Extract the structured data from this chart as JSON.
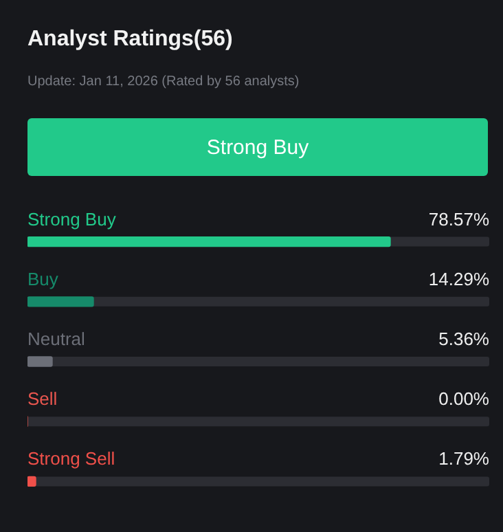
{
  "chart_data": {
    "type": "bar",
    "orientation": "horizontal",
    "title": "Analyst Ratings(56)",
    "subtitle": "Update: Jan 11, 2026 (Rated by 56 analysts)",
    "annotations": [
      "Strong Buy"
    ],
    "categories": [
      "Strong Buy",
      "Buy",
      "Neutral",
      "Sell",
      "Strong Sell"
    ],
    "values": [
      78.57,
      14.29,
      5.36,
      0,
      1.79
    ],
    "value_labels": [
      "78.57%",
      "14.29%",
      "5.36%",
      "0.00%",
      "1.79%"
    ],
    "colors": [
      "#22c98a",
      "#168a6a",
      "#6c6f78",
      "#e8564f",
      "#f0504a"
    ],
    "xlim": [
      0,
      100
    ],
    "tick_labels": false
  }
}
